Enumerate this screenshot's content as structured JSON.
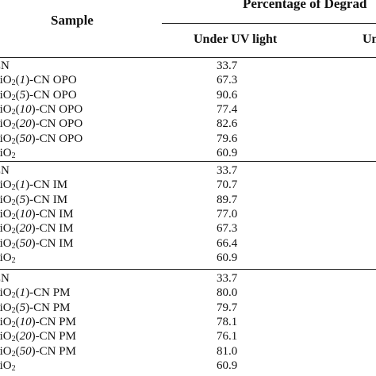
{
  "header": {
    "sample": "Sample",
    "percentage": "Percentage of Degrad",
    "uv": "Under UV light",
    "visible": "Un"
  },
  "groups": [
    {
      "rows": [
        {
          "pre": "CN",
          "sub": "",
          "num": "",
          "post": "",
          "uv": "33.7"
        },
        {
          "pre": "TiO",
          "sub": "2",
          "num": "1",
          "post": "-CN OPO",
          "uv": "67.3"
        },
        {
          "pre": "TiO",
          "sub": "2",
          "num": "5",
          "post": "-CN OPO",
          "uv": "90.6"
        },
        {
          "pre": "TiO",
          "sub": "2",
          "num": "10",
          "post": "-CN OPO",
          "uv": "77.4"
        },
        {
          "pre": "TiO",
          "sub": "2",
          "num": "20",
          "post": "-CN OPO",
          "uv": "82.6"
        },
        {
          "pre": "TiO",
          "sub": "2",
          "num": "50",
          "post": "-CN OPO",
          "uv": "79.6"
        },
        {
          "pre": "TiO",
          "sub": "2",
          "num": "",
          "post": "",
          "uv": "60.9"
        }
      ]
    },
    {
      "rows": [
        {
          "pre": "CN",
          "sub": "",
          "num": "",
          "post": "",
          "uv": "33.7"
        },
        {
          "pre": "TiO",
          "sub": "2",
          "num": "1",
          "post": "-CN IM",
          "uv": "70.7"
        },
        {
          "pre": "TiO",
          "sub": "2",
          "num": "5",
          "post": "-CN IM",
          "uv": "89.7"
        },
        {
          "pre": "TiO",
          "sub": "2",
          "num": "10",
          "post": "-CN IM",
          "uv": "77.0"
        },
        {
          "pre": "TiO",
          "sub": "2",
          "num": "20",
          "post": "-CN IM",
          "uv": "67.3"
        },
        {
          "pre": "TiO",
          "sub": "2",
          "num": "50",
          "post": "-CN IM",
          "uv": "66.4"
        },
        {
          "pre": "TiO",
          "sub": "2",
          "num": "",
          "post": "",
          "uv": "60.9"
        }
      ]
    },
    {
      "rows": [
        {
          "pre": "CN",
          "sub": "",
          "num": "",
          "post": "",
          "uv": "33.7"
        },
        {
          "pre": "TiO",
          "sub": "2",
          "num": "1",
          "post": "-CN PM",
          "uv": "80.0"
        },
        {
          "pre": "TiO",
          "sub": "2",
          "num": "5",
          "post": "-CN PM",
          "uv": "79.7"
        },
        {
          "pre": "TiO",
          "sub": "2",
          "num": "10",
          "post": "-CN PM",
          "uv": "78.1"
        },
        {
          "pre": "TiO",
          "sub": "2",
          "num": "20",
          "post": "-CN PM",
          "uv": "76.1"
        },
        {
          "pre": "TiO",
          "sub": "2",
          "num": "50",
          "post": "-CN PM",
          "uv": "81.0"
        },
        {
          "pre": "TiO",
          "sub": "2",
          "num": "",
          "post": "",
          "uv": "60.9"
        }
      ]
    }
  ]
}
